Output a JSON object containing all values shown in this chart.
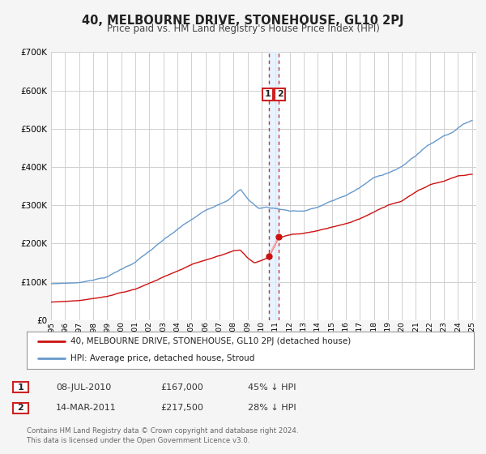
{
  "title": "40, MELBOURNE DRIVE, STONEHOUSE, GL10 2PJ",
  "subtitle": "Price paid vs. HM Land Registry's House Price Index (HPI)",
  "ylim": [
    0,
    700000
  ],
  "yticks": [
    0,
    100000,
    200000,
    300000,
    400000,
    500000,
    600000,
    700000
  ],
  "ytick_labels": [
    "£0",
    "£100K",
    "£200K",
    "£300K",
    "£400K",
    "£500K",
    "£600K",
    "£700K"
  ],
  "xlim_start": 1995.0,
  "xlim_end": 2025.3,
  "bg_color": "#ffffff",
  "plot_bg_color": "#ffffff",
  "grid_color": "#cccccc",
  "red_line_color": "#cc1111",
  "blue_line_color": "#6699cc",
  "transaction1_date": 2010.52,
  "transaction1_price": 167000,
  "transaction2_date": 2011.21,
  "transaction2_price": 217500,
  "vline_color": "#cc3333",
  "legend_label_red": "40, MELBOURNE DRIVE, STONEHOUSE, GL10 2PJ (detached house)",
  "legend_label_blue": "HPI: Average price, detached house, Stroud",
  "footer1": "Contains HM Land Registry data © Crown copyright and database right 2024.",
  "footer2": "This data is licensed under the Open Government Licence v3.0.",
  "table_row1": [
    "1",
    "08-JUL-2010",
    "£167,000",
    "45% ↓ HPI"
  ],
  "table_row2": [
    "2",
    "14-MAR-2011",
    "£217,500",
    "28% ↓ HPI"
  ]
}
